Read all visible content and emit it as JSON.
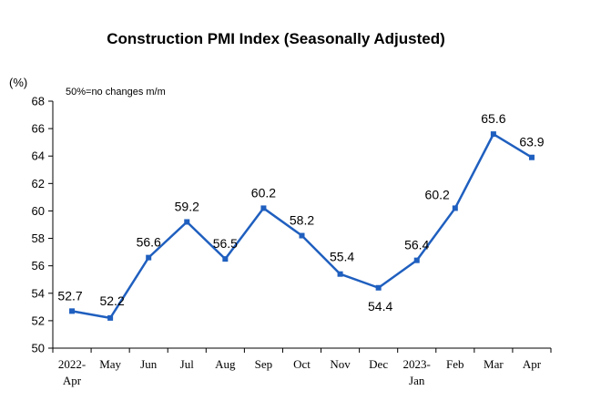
{
  "chart_data": {
    "type": "line",
    "title": "Construction PMI Index (Seasonally Adjusted)",
    "y_unit": "(%)",
    "note": "50%=no changes m/m",
    "ylim": [
      50,
      68
    ],
    "yticks": [
      50,
      52,
      54,
      56,
      58,
      60,
      62,
      64,
      66,
      68
    ],
    "ytick_labels": [
      "50",
      "52",
      "54",
      "56",
      "58",
      "60",
      "62",
      "64",
      "66",
      "68"
    ],
    "categories": [
      [
        "2022-",
        "Apr"
      ],
      [
        "May"
      ],
      [
        "Jun"
      ],
      [
        "Jul"
      ],
      [
        "Aug"
      ],
      [
        "Sep"
      ],
      [
        "Oct"
      ],
      [
        "Nov"
      ],
      [
        "Dec"
      ],
      [
        "2023-",
        "Jan"
      ],
      [
        "Feb"
      ],
      [
        "Mar"
      ],
      [
        "Apr"
      ]
    ],
    "values": [
      52.7,
      52.2,
      56.6,
      59.2,
      56.5,
      60.2,
      58.2,
      55.4,
      54.4,
      56.4,
      60.2,
      65.6,
      63.9
    ],
    "data_labels": [
      "52.7",
      "52.2",
      "56.6",
      "59.2",
      "56.5",
      "60.2",
      "58.2",
      "55.4",
      "54.4",
      "56.4",
      "60.2",
      "65.6",
      "63.9"
    ],
    "label_positions": [
      "above-left",
      "above-right",
      "above",
      "above",
      "above",
      "above",
      "above",
      "above-right",
      "below",
      "above",
      "left",
      "above",
      "above"
    ],
    "line_color": "#1f5fbf",
    "grid": false,
    "legend": "none"
  }
}
